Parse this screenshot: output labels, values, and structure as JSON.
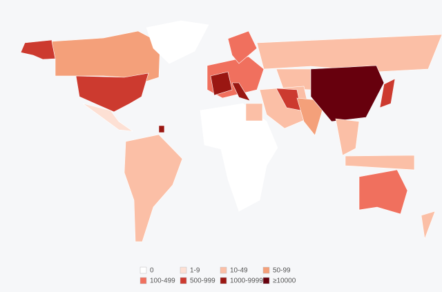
{
  "legend": {
    "items": [
      {
        "label": "0",
        "color": "#ffffff"
      },
      {
        "label": "1-9",
        "color": "#fde0d4"
      },
      {
        "label": "10-49",
        "color": "#fbbfa6"
      },
      {
        "label": "50-99",
        "color": "#f4a07a"
      },
      {
        "label": "100-499",
        "color": "#f0705e"
      },
      {
        "label": "500-999",
        "color": "#cc3a2f"
      },
      {
        "label": "1000-9999",
        "color": "#9a1712"
      },
      {
        "label": "≥10000",
        "color": "#67000d"
      }
    ]
  }
}
